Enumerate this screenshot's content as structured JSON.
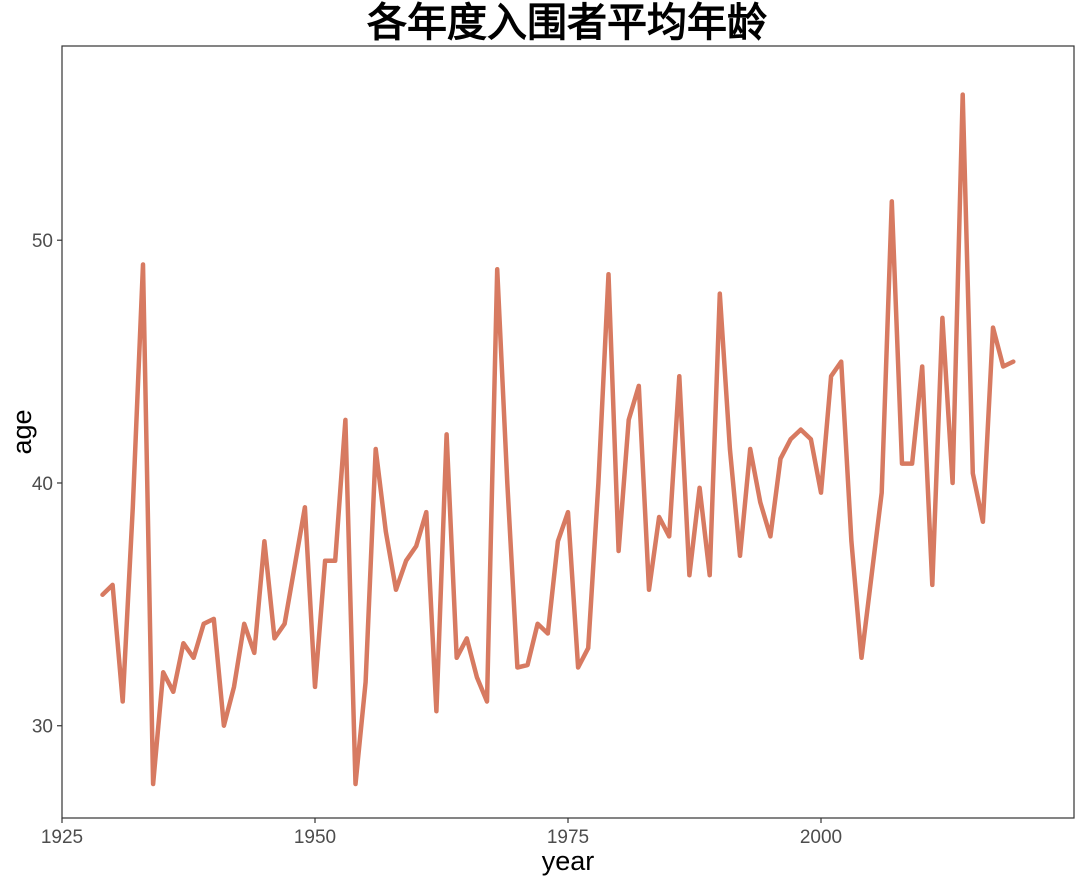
{
  "chart_data": {
    "type": "line",
    "title": "各年度入围者平均年龄",
    "xlabel": "year",
    "ylabel": "age",
    "xlim": [
      1925,
      2025
    ],
    "ylim": [
      26.2,
      58
    ],
    "x_ticks": [
      1925,
      1950,
      1975,
      2000
    ],
    "y_ticks": [
      30,
      40,
      50
    ],
    "grid": false,
    "legend": "none",
    "series": [
      {
        "color": "#d77a61",
        "points": [
          [
            1929,
            35.4
          ],
          [
            1930,
            35.8
          ],
          [
            1931,
            31.0
          ],
          [
            1932,
            39.0
          ],
          [
            1933,
            49.0
          ],
          [
            1934,
            27.6
          ],
          [
            1935,
            32.2
          ],
          [
            1936,
            31.4
          ],
          [
            1937,
            33.4
          ],
          [
            1938,
            32.8
          ],
          [
            1939,
            34.2
          ],
          [
            1940,
            34.4
          ],
          [
            1941,
            30.0
          ],
          [
            1942,
            31.6
          ],
          [
            1943,
            34.2
          ],
          [
            1944,
            33.0
          ],
          [
            1945,
            37.6
          ],
          [
            1946,
            33.6
          ],
          [
            1947,
            34.2
          ],
          [
            1948,
            36.6
          ],
          [
            1949,
            39.0
          ],
          [
            1950,
            31.6
          ],
          [
            1951,
            36.8
          ],
          [
            1952,
            36.8
          ],
          [
            1953,
            42.6
          ],
          [
            1954,
            27.6
          ],
          [
            1955,
            31.8
          ],
          [
            1956,
            41.4
          ],
          [
            1957,
            38.0
          ],
          [
            1958,
            35.6
          ],
          [
            1959,
            36.8
          ],
          [
            1960,
            37.4
          ],
          [
            1961,
            38.8
          ],
          [
            1962,
            30.6
          ],
          [
            1963,
            42.0
          ],
          [
            1964,
            32.8
          ],
          [
            1965,
            33.6
          ],
          [
            1966,
            32.0
          ],
          [
            1967,
            31.0
          ],
          [
            1968,
            48.8
          ],
          [
            1969,
            40.0
          ],
          [
            1970,
            32.4
          ],
          [
            1971,
            32.5
          ],
          [
            1972,
            34.2
          ],
          [
            1973,
            33.8
          ],
          [
            1974,
            37.6
          ],
          [
            1975,
            38.8
          ],
          [
            1976,
            32.4
          ],
          [
            1977,
            33.2
          ],
          [
            1978,
            40.0
          ],
          [
            1979,
            48.6
          ],
          [
            1980,
            37.2
          ],
          [
            1981,
            42.6
          ],
          [
            1982,
            44.0
          ],
          [
            1983,
            35.6
          ],
          [
            1984,
            38.6
          ],
          [
            1985,
            37.8
          ],
          [
            1986,
            44.4
          ],
          [
            1987,
            36.2
          ],
          [
            1988,
            39.8
          ],
          [
            1989,
            36.2
          ],
          [
            1990,
            47.8
          ],
          [
            1991,
            41.4
          ],
          [
            1992,
            37.0
          ],
          [
            1993,
            41.4
          ],
          [
            1994,
            39.2
          ],
          [
            1995,
            37.8
          ],
          [
            1996,
            41.0
          ],
          [
            1997,
            41.8
          ],
          [
            1998,
            42.2
          ],
          [
            1999,
            41.8
          ],
          [
            2000,
            39.6
          ],
          [
            2001,
            44.4
          ],
          [
            2002,
            45.0
          ],
          [
            2003,
            37.6
          ],
          [
            2004,
            32.8
          ],
          [
            2005,
            36.2
          ],
          [
            2006,
            39.6
          ],
          [
            2007,
            51.6
          ],
          [
            2008,
            40.8
          ],
          [
            2009,
            40.8
          ],
          [
            2010,
            44.8
          ],
          [
            2011,
            35.8
          ],
          [
            2012,
            46.8
          ],
          [
            2013,
            40.0
          ],
          [
            2014,
            56.0
          ],
          [
            2015,
            40.4
          ],
          [
            2016,
            38.4
          ],
          [
            2017,
            46.4
          ],
          [
            2018,
            44.8
          ],
          [
            2019,
            45.0
          ]
        ]
      }
    ]
  }
}
